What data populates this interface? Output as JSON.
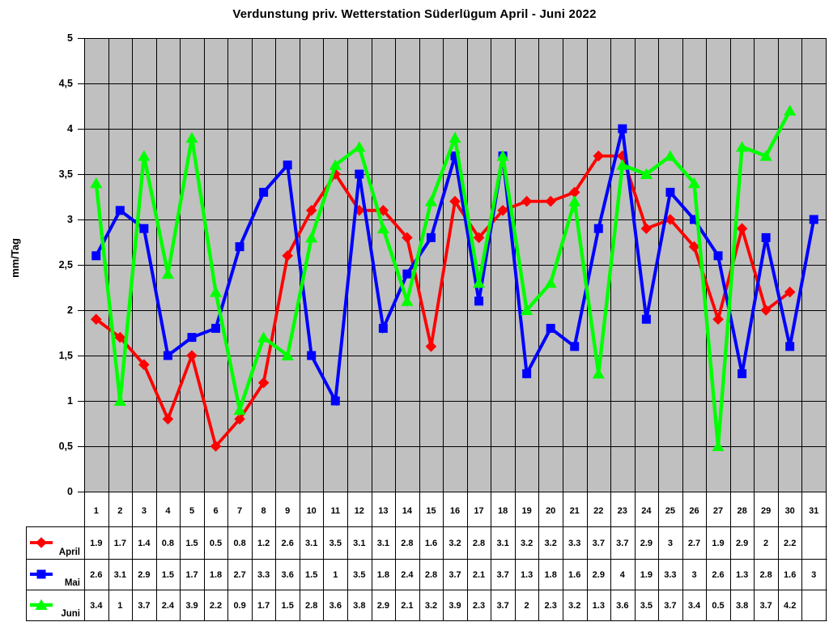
{
  "chart_data": {
    "type": "line",
    "title": "Verdunstung priv. Wetterstation Süderlügum April - Juni 2022",
    "xlabel": "",
    "ylabel": "mm/Tag",
    "ylim": [
      0,
      5
    ],
    "ytick_labels": [
      "0",
      "0,5",
      "1",
      "1,5",
      "2",
      "2,5",
      "3",
      "3,5",
      "4",
      "4,5",
      "5"
    ],
    "ytick_values": [
      0,
      0.5,
      1,
      1.5,
      2,
      2.5,
      3,
      3.5,
      4,
      4.5,
      5
    ],
    "categories": [
      "1",
      "2",
      "3",
      "4",
      "5",
      "6",
      "7",
      "8",
      "9",
      "10",
      "11",
      "12",
      "13",
      "14",
      "15",
      "16",
      "17",
      "18",
      "19",
      "20",
      "21",
      "22",
      "23",
      "24",
      "25",
      "26",
      "27",
      "28",
      "29",
      "30",
      "31"
    ],
    "grid": true,
    "plot_background": "#c0c0c0",
    "grid_color": "#000000",
    "legend_position": "data-table-left",
    "series": [
      {
        "name": "April",
        "color": "#ff0000",
        "marker": "diamond",
        "values": [
          1.9,
          1.7,
          1.4,
          0.8,
          1.5,
          0.5,
          0.8,
          1.2,
          2.6,
          3.1,
          3.5,
          3.1,
          3.1,
          2.8,
          1.6,
          3.2,
          2.8,
          3.1,
          3.2,
          3.2,
          3.3,
          3.7,
          3.7,
          2.9,
          3,
          2.7,
          1.9,
          2.9,
          2,
          2.2,
          null
        ]
      },
      {
        "name": "Mai",
        "color": "#0000ff",
        "marker": "square",
        "values": [
          2.6,
          3.1,
          2.9,
          1.5,
          1.7,
          1.8,
          2.7,
          3.3,
          3.6,
          1.5,
          1,
          3.5,
          1.8,
          2.4,
          2.8,
          3.7,
          2.1,
          3.7,
          1.3,
          1.8,
          1.6,
          2.9,
          4,
          1.9,
          3.3,
          3,
          2.6,
          1.3,
          2.8,
          1.6,
          3
        ]
      },
      {
        "name": "Juni",
        "color": "#00ff00",
        "marker": "triangle",
        "values": [
          3.4,
          1,
          3.7,
          2.4,
          3.9,
          2.2,
          0.9,
          1.7,
          1.5,
          2.8,
          3.6,
          3.8,
          2.9,
          2.1,
          3.2,
          3.9,
          2.3,
          3.7,
          2,
          2.3,
          3.2,
          1.3,
          3.6,
          3.5,
          3.7,
          3.4,
          0.5,
          3.8,
          3.7,
          4.2,
          null
        ]
      }
    ]
  }
}
